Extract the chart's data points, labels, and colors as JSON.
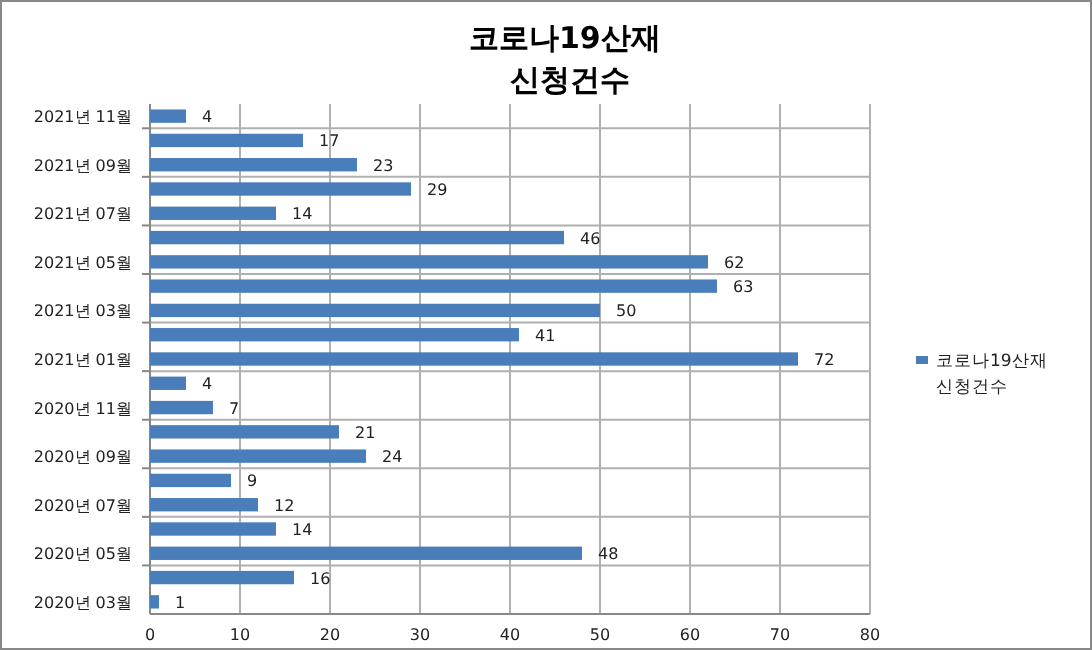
{
  "chart_data": {
    "type": "bar",
    "orientation": "horizontal",
    "title": "코로나19산재 신청건수",
    "categories": [
      "2021년 11월",
      null,
      "2021년 09월",
      null,
      "2021년 07월",
      null,
      "2021년 05월",
      null,
      "2021년 03월",
      null,
      "2021년 01월",
      null,
      "2020년 11월",
      null,
      "2020년 09월",
      null,
      "2020년 07월",
      null,
      "2020년 05월",
      null,
      "2020년 03월"
    ],
    "series": [
      {
        "name": "코로나19산재 신청건수",
        "color": "#4a7ebb",
        "values": [
          4,
          17,
          23,
          29,
          14,
          46,
          62,
          63,
          50,
          41,
          72,
          4,
          7,
          21,
          24,
          9,
          12,
          14,
          48,
          16,
          1
        ]
      }
    ],
    "xlim": [
      0,
      80
    ],
    "xticks": [
      0,
      10,
      20,
      30,
      40,
      50,
      60,
      70,
      80
    ],
    "grid": true,
    "legend": "right",
    "data_labels": true
  }
}
